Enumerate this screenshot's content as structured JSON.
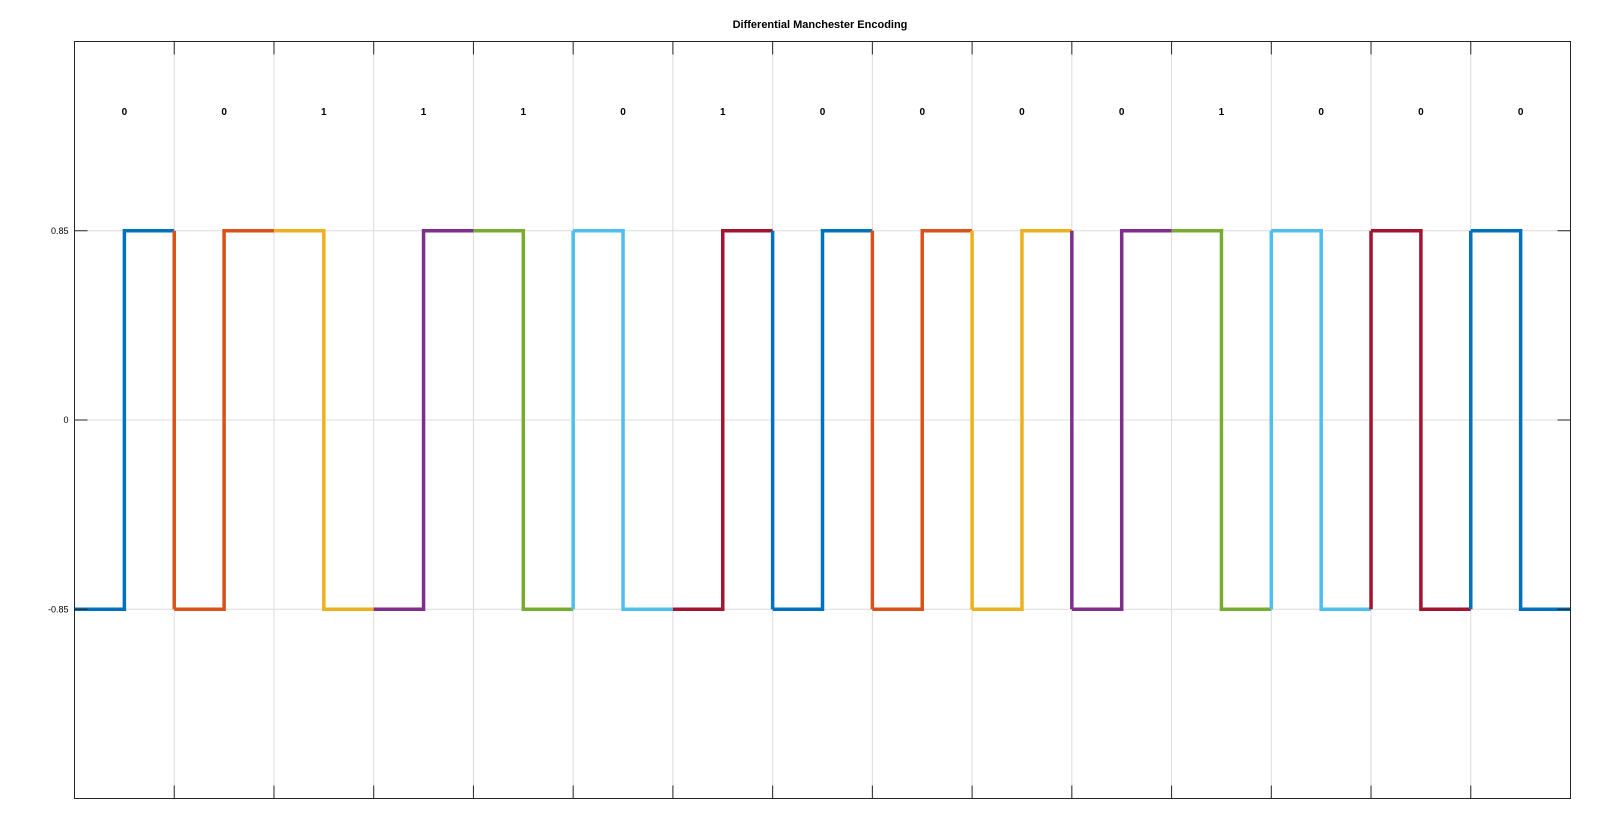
{
  "chart_data": {
    "type": "line",
    "title": "Differential Manchester Encoding",
    "xlabel": "",
    "ylabel": "",
    "xlim": [
      0,
      15
    ],
    "ylim": [
      -1.7,
      1.7
    ],
    "yticks": [
      -0.85,
      0,
      0.85
    ],
    "ytick_labels": [
      "-0.85",
      "0",
      "0.85"
    ],
    "grid": true,
    "bits": [
      "0",
      "0",
      "1",
      "1",
      "1",
      "0",
      "1",
      "0",
      "0",
      "0",
      "0",
      "1",
      "0",
      "0",
      "0"
    ],
    "series": [
      {
        "x": [
          0,
          0.5,
          0.5,
          1
        ],
        "y": [
          -0.85,
          -0.85,
          0.85,
          0.85
        ],
        "color": "#0072BD"
      },
      {
        "x": [
          1,
          1.5,
          1.5,
          2
        ],
        "y": [
          -0.85,
          -0.85,
          0.85,
          0.85
        ],
        "color": "#D95319"
      },
      {
        "x": [
          2,
          2.5,
          2.5,
          3
        ],
        "y": [
          0.85,
          0.85,
          -0.85,
          -0.85
        ],
        "color": "#EDB120"
      },
      {
        "x": [
          3,
          3.5,
          3.5,
          4
        ],
        "y": [
          -0.85,
          -0.85,
          0.85,
          0.85
        ],
        "color": "#7E2F8E"
      },
      {
        "x": [
          4,
          4.5,
          4.5,
          5
        ],
        "y": [
          0.85,
          0.85,
          -0.85,
          -0.85
        ],
        "color": "#77AC30"
      },
      {
        "x": [
          5,
          5.5,
          5.5,
          6
        ],
        "y": [
          0.85,
          0.85,
          -0.85,
          -0.85
        ],
        "color": "#4DBEEE"
      },
      {
        "x": [
          6,
          6.5,
          6.5,
          7
        ],
        "y": [
          -0.85,
          -0.85,
          0.85,
          0.85
        ],
        "color": "#A2142F"
      },
      {
        "x": [
          7,
          7.5,
          7.5,
          8
        ],
        "y": [
          -0.85,
          -0.85,
          0.85,
          0.85
        ],
        "color": "#0072BD"
      },
      {
        "x": [
          8,
          8.5,
          8.5,
          9
        ],
        "y": [
          -0.85,
          -0.85,
          0.85,
          0.85
        ],
        "color": "#D95319"
      },
      {
        "x": [
          9,
          9.5,
          9.5,
          10
        ],
        "y": [
          -0.85,
          -0.85,
          0.85,
          0.85
        ],
        "color": "#EDB120"
      },
      {
        "x": [
          10,
          10.5,
          10.5,
          11
        ],
        "y": [
          -0.85,
          -0.85,
          0.85,
          0.85
        ],
        "color": "#7E2F8E"
      },
      {
        "x": [
          11,
          11.5,
          11.5,
          12
        ],
        "y": [
          0.85,
          0.85,
          -0.85,
          -0.85
        ],
        "color": "#77AC30"
      },
      {
        "x": [
          12,
          12.5,
          12.5,
          13
        ],
        "y": [
          0.85,
          0.85,
          -0.85,
          -0.85
        ],
        "color": "#4DBEEE"
      },
      {
        "x": [
          13,
          13.5,
          13.5,
          14
        ],
        "y": [
          0.85,
          0.85,
          -0.85,
          -0.85
        ],
        "color": "#A2142F"
      },
      {
        "x": [
          14,
          14.5,
          14.5,
          15
        ],
        "y": [
          0.85,
          0.85,
          -0.85,
          -0.85
        ],
        "color": "#0072BD"
      }
    ]
  }
}
